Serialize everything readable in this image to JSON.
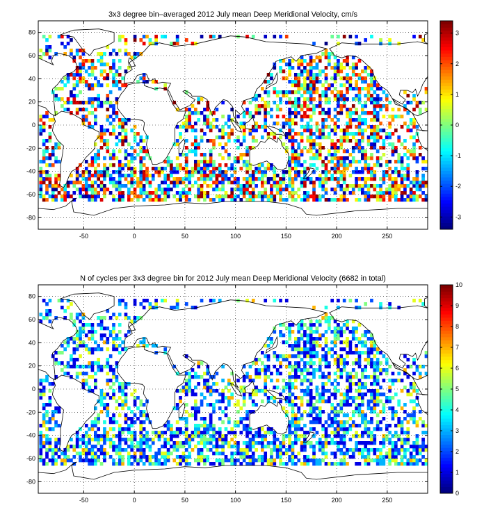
{
  "chart_data": [
    {
      "type": "heatmap",
      "title": "3x3 degree bin–averaged 2012 July mean Deep Meridional Velocity, cm/s",
      "xlabel": "",
      "ylabel": "",
      "xlim": [
        -95,
        290
      ],
      "ylim": [
        -90,
        90
      ],
      "xticks": [
        -50,
        0,
        50,
        100,
        150,
        200,
        250
      ],
      "yticks": [
        -80,
        -60,
        -40,
        -20,
        0,
        20,
        40,
        60,
        80
      ],
      "grid": true,
      "grid_style": "dotted",
      "bin_size_deg": 3,
      "colormap": "jet",
      "colorbar": {
        "min": -3.4,
        "max": 3.4,
        "ticks": [
          -3,
          -2,
          -1,
          0,
          1,
          2,
          3
        ],
        "placement": "right"
      },
      "background": "world coastline map"
    },
    {
      "type": "heatmap",
      "title": "N of cycles per 3x3 degree bin for 2012 July mean Deep Meridional Velocity (6682 in total)",
      "xlabel": "",
      "ylabel": "",
      "xlim": [
        -95,
        290
      ],
      "ylim": [
        -90,
        90
      ],
      "xticks": [
        -50,
        0,
        50,
        100,
        150,
        200,
        250
      ],
      "yticks": [
        -80,
        -60,
        -40,
        -20,
        0,
        20,
        40,
        60,
        80
      ],
      "grid": true,
      "grid_style": "dotted",
      "bin_size_deg": 3,
      "colormap": "jet",
      "total_cycles": 6682,
      "colorbar": {
        "min": 0,
        "max": 10,
        "ticks": [
          0,
          1,
          2,
          3,
          4,
          5,
          6,
          7,
          8,
          9,
          10
        ],
        "placement": "right"
      },
      "background": "world coastline map"
    }
  ]
}
